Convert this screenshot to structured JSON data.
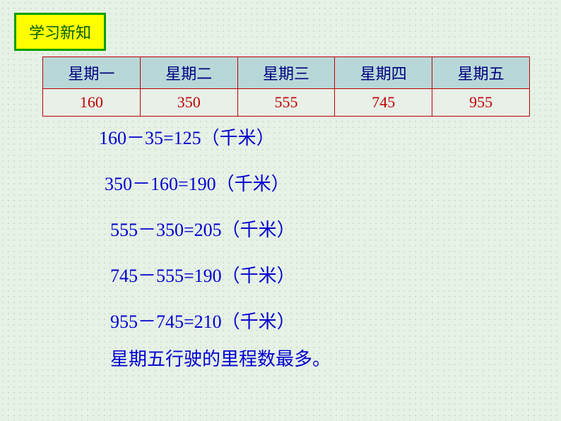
{
  "badge": {
    "label": "学习新知"
  },
  "table": {
    "headers": [
      "星期一",
      "星期二",
      "星期三",
      "星期四",
      "星期五"
    ],
    "values": [
      "160",
      "350",
      "555",
      "745",
      "955"
    ],
    "header_bg_color": "#b8d8d8",
    "header_text_color": "#000080",
    "data_bg_color": "#e8f0e8",
    "data_text_color": "#c00000",
    "border_color": "#c00000",
    "font_size": 22
  },
  "equations": [
    "160－35=125（千米）",
    "350－160=190（千米）",
    "555－350=205（千米）",
    "745－555=190（千米）",
    "955－745=210（千米）"
  ],
  "conclusion": "星期五行驶的里程数最多。",
  "colors": {
    "background": "#e6f2e6",
    "dot_pattern": "#c8d8c8",
    "badge_bg": "#ffff00",
    "badge_border": "#00a000",
    "badge_text": "#006000",
    "equation_text": "#0000d0"
  }
}
